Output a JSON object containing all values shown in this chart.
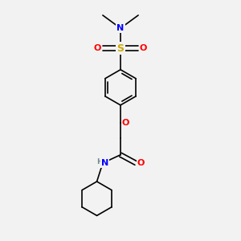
{
  "background_color": "#f2f2f2",
  "atom_colors": {
    "C": "#000000",
    "N": "#0000ff",
    "O": "#ff0000",
    "S": "#ccaa00",
    "H": "#6e8b8b"
  },
  "bond_color": "#000000",
  "bond_width": 1.2,
  "font_size_S": 9,
  "font_size_atom": 8,
  "font_size_NH": 7.5
}
